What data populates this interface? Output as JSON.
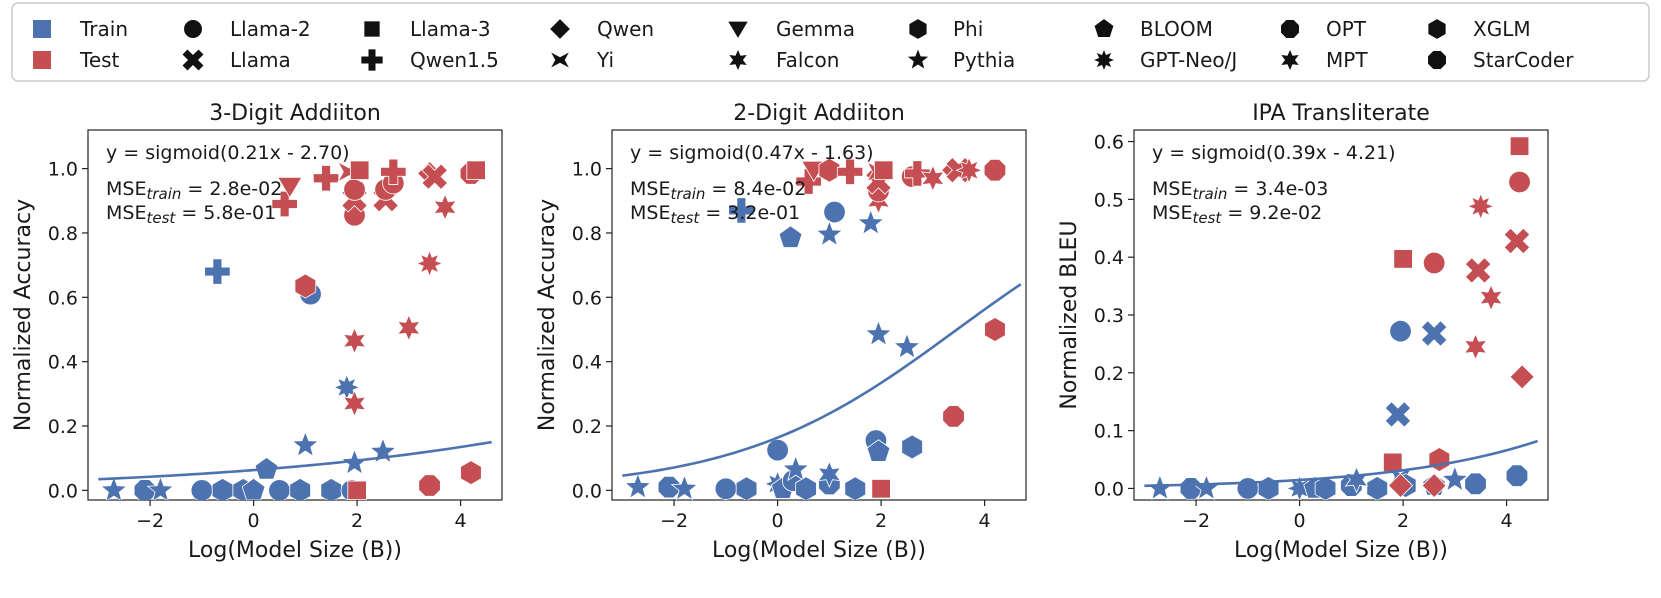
{
  "legend": {
    "splits": [
      {
        "label": "Train",
        "color": "#4c72b0"
      },
      {
        "label": "Test",
        "color": "#c44e52"
      }
    ],
    "models": [
      {
        "label": "Llama-2",
        "marker": "circle"
      },
      {
        "label": "Llama",
        "marker": "x"
      },
      {
        "label": "Llama-3",
        "marker": "square"
      },
      {
        "label": "Qwen1.5",
        "marker": "plus"
      },
      {
        "label": "Qwen",
        "marker": "diamond"
      },
      {
        "label": "Yi",
        "marker": "bowtie"
      },
      {
        "label": "Gemma",
        "marker": "triangle-down"
      },
      {
        "label": "Falcon",
        "marker": "star6"
      },
      {
        "label": "Phi",
        "marker": "hexagon"
      },
      {
        "label": "Pythia",
        "marker": "star5"
      },
      {
        "label": "BLOOM",
        "marker": "pentagon"
      },
      {
        "label": "GPT-Neo/J",
        "marker": "star8"
      },
      {
        "label": "OPT",
        "marker": "octagon"
      },
      {
        "label": "MPT",
        "marker": "star6"
      },
      {
        "label": "XGLM",
        "marker": "hexagon"
      },
      {
        "label": "StarCoder",
        "marker": "octagon"
      }
    ]
  },
  "colors": {
    "train": "#4c72b0",
    "test": "#c44e52",
    "fit": "#4c72b0"
  },
  "chart_data": [
    {
      "type": "scatter",
      "title": "3-Digit Addiiton",
      "xlabel": "Log(Model Size (B))",
      "ylabel": "Normalized Accuracy",
      "xlim": [
        -3.2,
        4.8
      ],
      "ylim": [
        -0.03,
        1.12
      ],
      "xticks": [
        -2,
        0,
        2,
        4
      ],
      "xtick_labels": [
        "−2",
        "0",
        "2",
        "4"
      ],
      "yticks": [
        0.0,
        0.2,
        0.4,
        0.6,
        0.8,
        1.0
      ],
      "ytick_labels": [
        "0.0",
        "0.2",
        "0.4",
        "0.6",
        "0.8",
        "1.0"
      ],
      "fit": {
        "a": 0.21,
        "b": -2.7,
        "x_range": [
          -3.0,
          4.6
        ]
      },
      "annotations": {
        "equation": "y = sigmoid(0.21x - 2.70)",
        "mse_train_label": "MSE",
        "mse_train_sub": "train",
        "mse_train_value": " = 2.8e-02",
        "mse_test_label": "MSE",
        "mse_test_sub": "test",
        "mse_test_value": " = 5.8e-01"
      },
      "points": [
        {
          "x": -2.7,
          "y": 0.0,
          "split": "train",
          "marker": "star5"
        },
        {
          "x": -2.1,
          "y": 0.0,
          "split": "train",
          "marker": "octagon"
        },
        {
          "x": -1.8,
          "y": 0.0,
          "split": "train",
          "marker": "star5"
        },
        {
          "x": -1.0,
          "y": 0.0,
          "split": "train",
          "marker": "circle"
        },
        {
          "x": -0.6,
          "y": 0.0,
          "split": "train",
          "marker": "hexagon"
        },
        {
          "x": -0.2,
          "y": 0.0,
          "split": "train",
          "marker": "hexagon"
        },
        {
          "x": 0.0,
          "y": 0.0,
          "split": "train",
          "marker": "pentagon"
        },
        {
          "x": 0.5,
          "y": 0.0,
          "split": "train",
          "marker": "circle"
        },
        {
          "x": 0.9,
          "y": 0.0,
          "split": "train",
          "marker": "hexagon"
        },
        {
          "x": 1.5,
          "y": 0.0,
          "split": "train",
          "marker": "hexagon"
        },
        {
          "x": 1.9,
          "y": 0.0,
          "split": "train",
          "marker": "circle"
        },
        {
          "x": 0.25,
          "y": 0.065,
          "split": "train",
          "marker": "pentagon"
        },
        {
          "x": 1.0,
          "y": 0.14,
          "split": "train",
          "marker": "star5"
        },
        {
          "x": 1.95,
          "y": 0.085,
          "split": "train",
          "marker": "star5"
        },
        {
          "x": 2.5,
          "y": 0.12,
          "split": "train",
          "marker": "star5"
        },
        {
          "x": 1.8,
          "y": 0.32,
          "split": "train",
          "marker": "star8"
        },
        {
          "x": -0.7,
          "y": 0.68,
          "split": "train",
          "marker": "plus"
        },
        {
          "x": 1.1,
          "y": 0.61,
          "split": "train",
          "marker": "circle"
        },
        {
          "x": 2.0,
          "y": 0.0,
          "split": "test",
          "marker": "square"
        },
        {
          "x": 3.4,
          "y": 0.015,
          "split": "test",
          "marker": "octagon"
        },
        {
          "x": 4.2,
          "y": 0.055,
          "split": "test",
          "marker": "hexagon"
        },
        {
          "x": 1.0,
          "y": 0.635,
          "split": "test",
          "marker": "hexagon"
        },
        {
          "x": 1.95,
          "y": 0.27,
          "split": "test",
          "marker": "star6"
        },
        {
          "x": 1.95,
          "y": 0.465,
          "split": "test",
          "marker": "star6"
        },
        {
          "x": 3.0,
          "y": 0.505,
          "split": "test",
          "marker": "star6"
        },
        {
          "x": 3.4,
          "y": 0.705,
          "split": "test",
          "marker": "star8"
        },
        {
          "x": 3.7,
          "y": 0.88,
          "split": "test",
          "marker": "star6"
        },
        {
          "x": 0.6,
          "y": 0.89,
          "split": "test",
          "marker": "plus"
        },
        {
          "x": 0.7,
          "y": 0.945,
          "split": "test",
          "marker": "triangle-down"
        },
        {
          "x": 1.4,
          "y": 0.97,
          "split": "test",
          "marker": "plus"
        },
        {
          "x": 1.95,
          "y": 0.855,
          "split": "test",
          "marker": "circle"
        },
        {
          "x": 1.95,
          "y": 0.905,
          "split": "test",
          "marker": "x"
        },
        {
          "x": 1.95,
          "y": 0.935,
          "split": "test",
          "marker": "circle"
        },
        {
          "x": 1.85,
          "y": 0.99,
          "split": "test",
          "marker": "bowtie"
        },
        {
          "x": 2.05,
          "y": 0.995,
          "split": "test",
          "marker": "square"
        },
        {
          "x": 2.55,
          "y": 0.905,
          "split": "test",
          "marker": "x"
        },
        {
          "x": 2.55,
          "y": 0.935,
          "split": "test",
          "marker": "circle"
        },
        {
          "x": 2.7,
          "y": 0.955,
          "split": "test",
          "marker": "circle"
        },
        {
          "x": 2.7,
          "y": 0.99,
          "split": "test",
          "marker": "plus"
        },
        {
          "x": 3.4,
          "y": 0.985,
          "split": "test",
          "marker": "diamond"
        },
        {
          "x": 3.5,
          "y": 0.975,
          "split": "test",
          "marker": "x"
        },
        {
          "x": 4.2,
          "y": 0.985,
          "split": "test",
          "marker": "octagon"
        },
        {
          "x": 4.3,
          "y": 0.995,
          "split": "test",
          "marker": "square"
        }
      ]
    },
    {
      "type": "scatter",
      "title": "2-Digit Addiiton",
      "xlabel": "Log(Model Size (B))",
      "ylabel": "Normalized Accuracy",
      "xlim": [
        -3.2,
        4.8
      ],
      "ylim": [
        -0.03,
        1.12
      ],
      "xticks": [
        -2,
        0,
        2,
        4
      ],
      "xtick_labels": [
        "−2",
        "0",
        "2",
        "4"
      ],
      "yticks": [
        0.0,
        0.2,
        0.4,
        0.6,
        0.8,
        1.0
      ],
      "ytick_labels": [
        "0.0",
        "0.2",
        "0.4",
        "0.6",
        "0.8",
        "1.0"
      ],
      "fit": {
        "a": 0.47,
        "b": -1.63,
        "x_range": [
          -3.0,
          4.7
        ]
      },
      "annotations": {
        "equation": "y = sigmoid(0.47x - 1.63)",
        "mse_train_label": "MSE",
        "mse_train_sub": "train",
        "mse_train_value": " = 8.4e-02",
        "mse_test_label": "MSE",
        "mse_test_sub": "test",
        "mse_test_value": " = 3.2e-01"
      },
      "points": [
        {
          "x": -2.7,
          "y": 0.01,
          "split": "train",
          "marker": "star5"
        },
        {
          "x": -2.1,
          "y": 0.01,
          "split": "train",
          "marker": "octagon"
        },
        {
          "x": -1.8,
          "y": 0.005,
          "split": "train",
          "marker": "star5"
        },
        {
          "x": -1.0,
          "y": 0.005,
          "split": "train",
          "marker": "circle"
        },
        {
          "x": -0.6,
          "y": 0.005,
          "split": "train",
          "marker": "hexagon"
        },
        {
          "x": 0.0,
          "y": 0.125,
          "split": "train",
          "marker": "circle"
        },
        {
          "x": 0.0,
          "y": 0.02,
          "split": "train",
          "marker": "star8"
        },
        {
          "x": 0.1,
          "y": 0.005,
          "split": "train",
          "marker": "pentagon"
        },
        {
          "x": 0.3,
          "y": 0.03,
          "split": "train",
          "marker": "circle"
        },
        {
          "x": 0.35,
          "y": 0.065,
          "split": "train",
          "marker": "star5"
        },
        {
          "x": 0.55,
          "y": 0.005,
          "split": "train",
          "marker": "hexagon"
        },
        {
          "x": 1.0,
          "y": 0.02,
          "split": "train",
          "marker": "octagon"
        },
        {
          "x": 1.0,
          "y": 0.05,
          "split": "train",
          "marker": "star6"
        },
        {
          "x": 1.5,
          "y": 0.005,
          "split": "train",
          "marker": "hexagon"
        },
        {
          "x": 1.9,
          "y": 0.155,
          "split": "train",
          "marker": "circle"
        },
        {
          "x": 1.95,
          "y": 0.12,
          "split": "train",
          "marker": "pentagon"
        },
        {
          "x": 2.6,
          "y": 0.135,
          "split": "train",
          "marker": "hexagon"
        },
        {
          "x": 1.95,
          "y": 0.485,
          "split": "train",
          "marker": "star5"
        },
        {
          "x": 2.5,
          "y": 0.445,
          "split": "train",
          "marker": "star5"
        },
        {
          "x": 0.25,
          "y": 0.785,
          "split": "train",
          "marker": "pentagon"
        },
        {
          "x": 1.1,
          "y": 0.865,
          "split": "train",
          "marker": "circle"
        },
        {
          "x": 1.0,
          "y": 0.795,
          "split": "train",
          "marker": "star5"
        },
        {
          "x": 1.8,
          "y": 0.83,
          "split": "train",
          "marker": "star5"
        },
        {
          "x": -0.7,
          "y": 0.87,
          "split": "train",
          "marker": "plus"
        },
        {
          "x": 2.0,
          "y": 0.005,
          "split": "test",
          "marker": "square"
        },
        {
          "x": 3.4,
          "y": 0.23,
          "split": "test",
          "marker": "octagon"
        },
        {
          "x": 4.2,
          "y": 0.5,
          "split": "test",
          "marker": "hexagon"
        },
        {
          "x": 0.6,
          "y": 0.96,
          "split": "test",
          "marker": "plus"
        },
        {
          "x": 0.7,
          "y": 0.995,
          "split": "test",
          "marker": "triangle-down"
        },
        {
          "x": 1.0,
          "y": 0.995,
          "split": "test",
          "marker": "hexagon"
        },
        {
          "x": 1.4,
          "y": 0.99,
          "split": "test",
          "marker": "plus"
        },
        {
          "x": 1.95,
          "y": 0.9,
          "split": "test",
          "marker": "star6"
        },
        {
          "x": 1.95,
          "y": 0.93,
          "split": "test",
          "marker": "circle"
        },
        {
          "x": 1.95,
          "y": 0.96,
          "split": "test",
          "marker": "x"
        },
        {
          "x": 1.95,
          "y": 0.99,
          "split": "test",
          "marker": "bowtie"
        },
        {
          "x": 2.05,
          "y": 0.995,
          "split": "test",
          "marker": "square"
        },
        {
          "x": 2.6,
          "y": 0.975,
          "split": "test",
          "marker": "circle"
        },
        {
          "x": 2.7,
          "y": 0.985,
          "split": "test",
          "marker": "plus"
        },
        {
          "x": 3.0,
          "y": 0.97,
          "split": "test",
          "marker": "star6"
        },
        {
          "x": 3.4,
          "y": 0.995,
          "split": "test",
          "marker": "diamond"
        },
        {
          "x": 3.5,
          "y": 0.995,
          "split": "test",
          "marker": "x"
        },
        {
          "x": 3.7,
          "y": 0.995,
          "split": "test",
          "marker": "star8"
        },
        {
          "x": 4.2,
          "y": 0.995,
          "split": "test",
          "marker": "octagon"
        }
      ]
    },
    {
      "type": "scatter",
      "title": "IPA Transliterate",
      "xlabel": "Log(Model Size (B))",
      "ylabel": "Normalized BLEU",
      "xlim": [
        -3.2,
        4.8
      ],
      "ylim": [
        -0.02,
        0.62
      ],
      "xticks": [
        -2,
        0,
        2,
        4
      ],
      "xtick_labels": [
        "−2",
        "0",
        "2",
        "4"
      ],
      "yticks": [
        0.0,
        0.1,
        0.2,
        0.3,
        0.4,
        0.5,
        0.6
      ],
      "ytick_labels": [
        "0.0",
        "0.1",
        "0.2",
        "0.3",
        "0.4",
        "0.5",
        "0.6"
      ],
      "fit": {
        "a": 0.39,
        "b": -4.21,
        "x_range": [
          -3.0,
          4.6
        ]
      },
      "annotations": {
        "equation": "y = sigmoid(0.39x - 4.21)",
        "mse_train_label": "MSE",
        "mse_train_sub": "train",
        "mse_train_value": " = 3.4e-03",
        "mse_test_label": "MSE",
        "mse_test_sub": "test",
        "mse_test_value": " = 9.2e-02"
      },
      "points": [
        {
          "x": -2.7,
          "y": 0.0,
          "split": "train",
          "marker": "star5"
        },
        {
          "x": -2.1,
          "y": 0.0,
          "split": "train",
          "marker": "octagon"
        },
        {
          "x": -1.8,
          "y": 0.0,
          "split": "train",
          "marker": "star5"
        },
        {
          "x": -1.0,
          "y": 0.0,
          "split": "train",
          "marker": "circle"
        },
        {
          "x": -0.6,
          "y": 0.0,
          "split": "train",
          "marker": "hexagon"
        },
        {
          "x": 0.0,
          "y": 0.0,
          "split": "train",
          "marker": "star8"
        },
        {
          "x": 0.3,
          "y": 0.0,
          "split": "train",
          "marker": "pentagon"
        },
        {
          "x": 0.5,
          "y": 0.0,
          "split": "train",
          "marker": "hexagon"
        },
        {
          "x": 1.0,
          "y": 0.005,
          "split": "train",
          "marker": "octagon"
        },
        {
          "x": 1.5,
          "y": 0.0,
          "split": "train",
          "marker": "hexagon"
        },
        {
          "x": 1.1,
          "y": 0.015,
          "split": "train",
          "marker": "star6"
        },
        {
          "x": 1.95,
          "y": 0.02,
          "split": "train",
          "marker": "bowtie"
        },
        {
          "x": 2.05,
          "y": 0.005,
          "split": "train",
          "marker": "hexagon"
        },
        {
          "x": 2.6,
          "y": 0.005,
          "split": "train",
          "marker": "pentagon"
        },
        {
          "x": 3.0,
          "y": 0.015,
          "split": "train",
          "marker": "star5"
        },
        {
          "x": 3.4,
          "y": 0.008,
          "split": "train",
          "marker": "octagon"
        },
        {
          "x": 4.2,
          "y": 0.022,
          "split": "train",
          "marker": "octagon"
        },
        {
          "x": 1.9,
          "y": 0.128,
          "split": "train",
          "marker": "x"
        },
        {
          "x": 1.95,
          "y": 0.272,
          "split": "train",
          "marker": "circle"
        },
        {
          "x": 2.6,
          "y": 0.268,
          "split": "train",
          "marker": "x"
        },
        {
          "x": 1.95,
          "y": 0.005,
          "split": "test",
          "marker": "diamond"
        },
        {
          "x": 2.6,
          "y": 0.005,
          "split": "test",
          "marker": "diamond"
        },
        {
          "x": 2.7,
          "y": 0.05,
          "split": "test",
          "marker": "hexagon"
        },
        {
          "x": 1.8,
          "y": 0.045,
          "split": "test",
          "marker": "square"
        },
        {
          "x": 2.0,
          "y": 0.397,
          "split": "test",
          "marker": "square"
        },
        {
          "x": 2.6,
          "y": 0.39,
          "split": "test",
          "marker": "circle"
        },
        {
          "x": 3.4,
          "y": 0.245,
          "split": "test",
          "marker": "star6"
        },
        {
          "x": 3.45,
          "y": 0.377,
          "split": "test",
          "marker": "x"
        },
        {
          "x": 3.5,
          "y": 0.488,
          "split": "test",
          "marker": "star8"
        },
        {
          "x": 3.7,
          "y": 0.33,
          "split": "test",
          "marker": "star6"
        },
        {
          "x": 4.2,
          "y": 0.428,
          "split": "test",
          "marker": "x"
        },
        {
          "x": 4.25,
          "y": 0.53,
          "split": "test",
          "marker": "circle"
        },
        {
          "x": 4.25,
          "y": 0.592,
          "split": "test",
          "marker": "square"
        },
        {
          "x": 4.3,
          "y": 0.193,
          "split": "test",
          "marker": "diamond"
        }
      ]
    }
  ]
}
